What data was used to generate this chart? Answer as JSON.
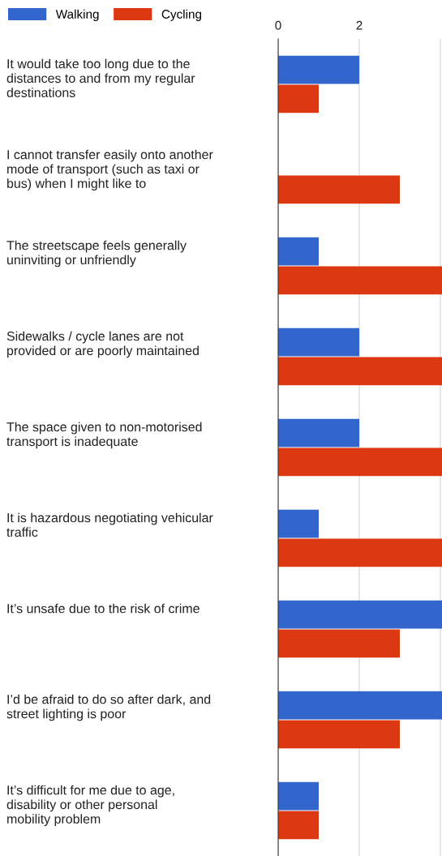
{
  "chart_data": {
    "type": "bar",
    "orientation": "horizontal",
    "categories": [
      "It would take too long due to the\ndistances to and from my regular\ndestinations",
      "I cannot transfer easily onto another\nmode of transport (such as taxi or\nbus) when I might like to",
      "The streetscape feels generally\nuninviting or unfriendly",
      "Sidewalks / cycle lanes are not\nprovided or are poorly maintained",
      "The space given to non-motorised\ntransport is inadequate",
      "It is hazardous negotiating vehicular\ntraffic",
      "It’s unsafe due to the risk of crime",
      "I’d be afraid to do so after dark, and\nstreet lighting is poor",
      "It’s difficult for me due to age,\ndisability or other personal\nmobility problem"
    ],
    "series": [
      {
        "name": "Walking",
        "color": "#3366cc",
        "values": [
          2,
          0,
          1,
          2,
          2,
          1,
          4.04,
          4.04,
          1
        ]
      },
      {
        "name": "Cycling",
        "color": "#dc3912",
        "values": [
          1,
          3,
          4.04,
          4.04,
          4.04,
          4.04,
          3,
          3,
          1
        ]
      }
    ],
    "xlim": [
      0,
      4.04
    ],
    "xticks": [
      0,
      2,
      {
        "value": 4,
        "label": null
      }
    ],
    "grid": "x",
    "legend": "top left"
  }
}
